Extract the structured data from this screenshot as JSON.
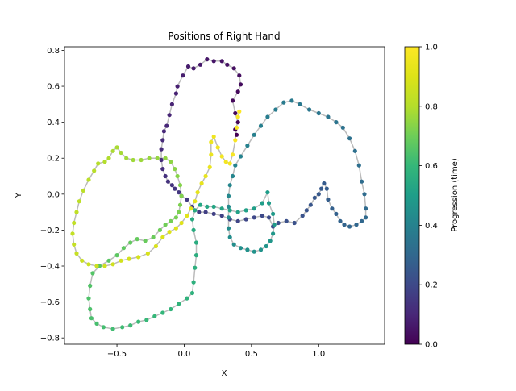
{
  "chart_data": {
    "type": "scatter",
    "title": "Positions of Right Hand",
    "xlabel": "X",
    "ylabel": "Y",
    "xlim": [
      -0.89,
      1.49
    ],
    "ylim": [
      -0.835,
      0.82
    ],
    "x_ticks": [
      -0.5,
      0.0,
      0.5,
      1.0
    ],
    "x_tick_labels": [
      "−0.5",
      "0.0",
      "0.5",
      "1.0"
    ],
    "y_ticks": [
      -0.8,
      -0.6,
      -0.4,
      -0.2,
      0.0,
      0.2,
      0.4,
      0.6,
      0.8
    ],
    "y_tick_labels": [
      "−0.8",
      "−0.6",
      "−0.4",
      "−0.2",
      "0.0",
      "0.2",
      "0.4",
      "0.6",
      "0.8"
    ],
    "grid": false,
    "colormap": "viridis",
    "path_color": "#bbbbbb",
    "colorbar": {
      "label": "Progression (time)",
      "ticks": [
        0.0,
        0.2,
        0.4,
        0.6,
        0.8,
        1.0
      ],
      "tick_labels": [
        "0.0",
        "0.2",
        "0.4",
        "0.6",
        "0.8",
        "1.0"
      ]
    },
    "points": [
      [
        0.39,
        0.33
      ],
      [
        0.38,
        0.36
      ],
      [
        0.4,
        0.4
      ],
      [
        0.38,
        0.45
      ],
      [
        0.36,
        0.52
      ],
      [
        0.4,
        0.57
      ],
      [
        0.42,
        0.61
      ],
      [
        0.41,
        0.66
      ],
      [
        0.37,
        0.7
      ],
      [
        0.32,
        0.72
      ],
      [
        0.28,
        0.74
      ],
      [
        0.22,
        0.74
      ],
      [
        0.17,
        0.75
      ],
      [
        0.12,
        0.72
      ],
      [
        0.07,
        0.7
      ],
      [
        0.03,
        0.71
      ],
      [
        -0.01,
        0.66
      ],
      [
        -0.05,
        0.6
      ],
      [
        -0.06,
        0.56
      ],
      [
        -0.09,
        0.5
      ],
      [
        -0.11,
        0.44
      ],
      [
        -0.13,
        0.38
      ],
      [
        -0.15,
        0.35
      ],
      [
        -0.16,
        0.3
      ],
      [
        -0.17,
        0.25
      ],
      [
        -0.17,
        0.19
      ],
      [
        -0.16,
        0.14
      ],
      [
        -0.14,
        0.1
      ],
      [
        -0.12,
        0.07
      ],
      [
        -0.09,
        0.05
      ],
      [
        -0.07,
        0.03
      ],
      [
        -0.04,
        0.01
      ],
      [
        -0.02,
        -0.01
      ],
      [
        0.02,
        -0.03
      ],
      [
        0.06,
        -0.07
      ],
      [
        0.11,
        -0.1
      ],
      [
        0.16,
        -0.1
      ],
      [
        0.22,
        -0.11
      ],
      [
        0.28,
        -0.12
      ],
      [
        0.34,
        -0.14
      ],
      [
        0.4,
        -0.15
      ],
      [
        0.46,
        -0.14
      ],
      [
        0.52,
        -0.13
      ],
      [
        0.58,
        -0.12
      ],
      [
        0.63,
        -0.13
      ],
      [
        0.66,
        -0.18
      ],
      [
        0.7,
        -0.16
      ],
      [
        0.76,
        -0.15
      ],
      [
        0.82,
        -0.16
      ],
      [
        0.88,
        -0.12
      ],
      [
        0.91,
        -0.09
      ],
      [
        0.94,
        -0.06
      ],
      [
        0.97,
        -0.02
      ],
      [
        1.0,
        0.0
      ],
      [
        1.02,
        0.03
      ],
      [
        1.04,
        0.06
      ],
      [
        1.06,
        0.03
      ],
      [
        1.07,
        -0.03
      ],
      [
        1.1,
        -0.08
      ],
      [
        1.13,
        -0.11
      ],
      [
        1.16,
        -0.15
      ],
      [
        1.19,
        -0.17
      ],
      [
        1.23,
        -0.18
      ],
      [
        1.28,
        -0.17
      ],
      [
        1.32,
        -0.15
      ],
      [
        1.35,
        -0.13
      ],
      [
        1.35,
        -0.08
      ],
      [
        1.34,
        0.0
      ],
      [
        1.32,
        0.07
      ],
      [
        1.3,
        0.16
      ],
      [
        1.27,
        0.24
      ],
      [
        1.23,
        0.31
      ],
      [
        1.18,
        0.37
      ],
      [
        1.13,
        0.4
      ],
      [
        1.07,
        0.43
      ],
      [
        1.0,
        0.45
      ],
      [
        0.93,
        0.47
      ],
      [
        0.86,
        0.5
      ],
      [
        0.8,
        0.52
      ],
      [
        0.74,
        0.51
      ],
      [
        0.68,
        0.47
      ],
      [
        0.62,
        0.43
      ],
      [
        0.57,
        0.38
      ],
      [
        0.52,
        0.33
      ],
      [
        0.47,
        0.27
      ],
      [
        0.42,
        0.21
      ],
      [
        0.38,
        0.16
      ],
      [
        0.36,
        0.1
      ],
      [
        0.34,
        0.05
      ],
      [
        0.33,
        -0.01
      ],
      [
        0.33,
        -0.07
      ],
      [
        0.33,
        -0.13
      ],
      [
        0.33,
        -0.19
      ],
      [
        0.34,
        -0.24
      ],
      [
        0.37,
        -0.28
      ],
      [
        0.42,
        -0.3
      ],
      [
        0.47,
        -0.31
      ],
      [
        0.52,
        -0.32
      ],
      [
        0.57,
        -0.31
      ],
      [
        0.61,
        -0.29
      ],
      [
        0.64,
        -0.26
      ],
      [
        0.66,
        -0.22
      ],
      [
        0.67,
        -0.17
      ],
      [
        0.66,
        -0.11
      ],
      [
        0.63,
        -0.05
      ],
      [
        0.62,
        0.01
      ],
      [
        0.58,
        -0.05
      ],
      [
        0.52,
        -0.08
      ],
      [
        0.46,
        -0.09
      ],
      [
        0.4,
        -0.1
      ],
      [
        0.34,
        -0.09
      ],
      [
        0.28,
        -0.08
      ],
      [
        0.22,
        -0.07
      ],
      [
        0.17,
        -0.07
      ],
      [
        0.12,
        -0.06
      ],
      [
        0.08,
        -0.09
      ],
      [
        0.06,
        -0.14
      ],
      [
        0.07,
        -0.2
      ],
      [
        0.09,
        -0.27
      ],
      [
        0.09,
        -0.34
      ],
      [
        0.08,
        -0.41
      ],
      [
        0.07,
        -0.49
      ],
      [
        0.06,
        -0.55
      ],
      [
        0.02,
        -0.58
      ],
      [
        -0.04,
        -0.61
      ],
      [
        -0.1,
        -0.64
      ],
      [
        -0.16,
        -0.66
      ],
      [
        -0.22,
        -0.68
      ],
      [
        -0.28,
        -0.7
      ],
      [
        -0.34,
        -0.71
      ],
      [
        -0.4,
        -0.73
      ],
      [
        -0.46,
        -0.74
      ],
      [
        -0.53,
        -0.75
      ],
      [
        -0.6,
        -0.74
      ],
      [
        -0.65,
        -0.72
      ],
      [
        -0.69,
        -0.69
      ],
      [
        -0.7,
        -0.64
      ],
      [
        -0.71,
        -0.58
      ],
      [
        -0.7,
        -0.51
      ],
      [
        -0.68,
        -0.44
      ],
      [
        -0.63,
        -0.4
      ],
      [
        -0.56,
        -0.37
      ],
      [
        -0.5,
        -0.34
      ],
      [
        -0.45,
        -0.3
      ],
      [
        -0.4,
        -0.27
      ],
      [
        -0.35,
        -0.25
      ],
      [
        -0.29,
        -0.26
      ],
      [
        -0.23,
        -0.24
      ],
      [
        -0.18,
        -0.2
      ],
      [
        -0.14,
        -0.17
      ],
      [
        -0.1,
        -0.15
      ],
      [
        -0.06,
        -0.13
      ],
      [
        -0.04,
        -0.1
      ],
      [
        -0.03,
        -0.06
      ],
      [
        -0.02,
        -0.01
      ],
      [
        -0.03,
        0.05
      ],
      [
        -0.05,
        0.1
      ],
      [
        -0.07,
        0.14
      ],
      [
        -0.1,
        0.18
      ],
      [
        -0.14,
        0.2
      ],
      [
        -0.2,
        0.2
      ],
      [
        -0.26,
        0.2
      ],
      [
        -0.32,
        0.19
      ],
      [
        -0.38,
        0.19
      ],
      [
        -0.43,
        0.2
      ],
      [
        -0.47,
        0.23
      ],
      [
        -0.5,
        0.26
      ],
      [
        -0.53,
        0.24
      ],
      [
        -0.56,
        0.2
      ],
      [
        -0.59,
        0.18
      ],
      [
        -0.64,
        0.17
      ],
      [
        -0.67,
        0.13
      ],
      [
        -0.71,
        0.08
      ],
      [
        -0.75,
        0.02
      ],
      [
        -0.78,
        -0.04
      ],
      [
        -0.8,
        -0.1
      ],
      [
        -0.82,
        -0.16
      ],
      [
        -0.83,
        -0.22
      ],
      [
        -0.82,
        -0.28
      ],
      [
        -0.8,
        -0.33
      ],
      [
        -0.76,
        -0.37
      ],
      [
        -0.71,
        -0.39
      ],
      [
        -0.65,
        -0.4
      ],
      [
        -0.59,
        -0.4
      ],
      [
        -0.53,
        -0.39
      ],
      [
        -0.47,
        -0.37
      ],
      [
        -0.41,
        -0.36
      ],
      [
        -0.34,
        -0.35
      ],
      [
        -0.27,
        -0.33
      ],
      [
        -0.21,
        -0.29
      ],
      [
        -0.16,
        -0.24
      ],
      [
        -0.11,
        -0.21
      ],
      [
        -0.06,
        -0.19
      ],
      [
        -0.02,
        -0.16
      ],
      [
        0.02,
        -0.12
      ],
      [
        0.05,
        -0.08
      ],
      [
        0.08,
        -0.04
      ],
      [
        0.1,
        0.01
      ],
      [
        0.13,
        0.06
      ],
      [
        0.16,
        0.1
      ],
      [
        0.19,
        0.15
      ],
      [
        0.2,
        0.22
      ],
      [
        0.2,
        0.29
      ],
      [
        0.22,
        0.32
      ],
      [
        0.25,
        0.26
      ],
      [
        0.28,
        0.21
      ],
      [
        0.31,
        0.18
      ],
      [
        0.34,
        0.17
      ],
      [
        0.36,
        0.22
      ],
      [
        0.38,
        0.3
      ],
      [
        0.39,
        0.37
      ],
      [
        0.4,
        0.43
      ],
      [
        0.41,
        0.46
      ]
    ]
  }
}
